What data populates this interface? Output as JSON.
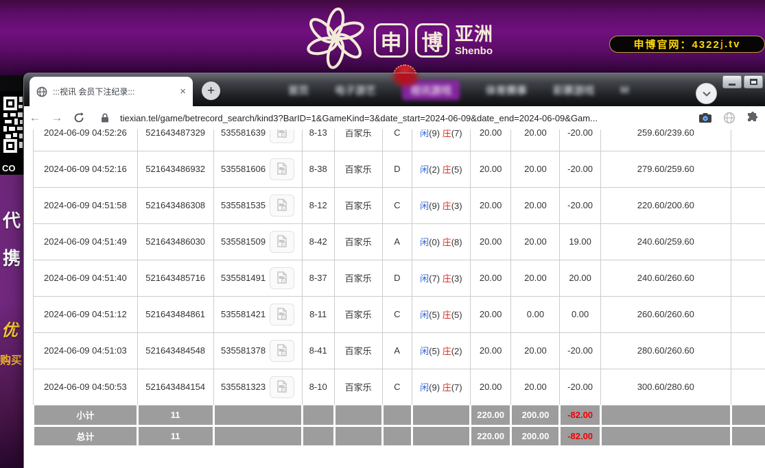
{
  "header": {
    "logo_char1": "申",
    "logo_char2": "博",
    "logo_region": "亚洲",
    "logo_sub": "Shenbo",
    "official_label": "申博官网：4322",
    "official_j": "j",
    "official_tv": ".tv",
    "accent_gold": "#ffd60a",
    "accent_purple": "#70107f"
  },
  "background_page": {
    "nav_items": [
      "首页",
      "电子游艺",
      "视讯游戏",
      "体育赛事",
      "彩票游戏",
      "M"
    ],
    "active_nav": "视讯游戏",
    "left_strip": {
      "co": "CO",
      "char1": "代",
      "char2": "携",
      "gold1": "优",
      "gold2": "购买"
    }
  },
  "browser": {
    "tab_title": ":::视讯 会员下注纪录:::",
    "tab_close": "×",
    "new_tab": "+",
    "back": "←",
    "forward": "→",
    "url": "tiexian.tel/game/betrecord_search/kind3?BarID=1&GameKind=3&date_start=2024-06-09&date_end=2024-06-09&Gam..."
  },
  "table": {
    "rows": [
      {
        "time": "2024-06-09 04:52:26",
        "bet_id": "521643487329",
        "round_id": "535581639",
        "table_no": "8-13",
        "game": "百家乐",
        "letter": "C",
        "p_label": "闲",
        "p_num": "(9)",
        "b_label": "庄",
        "b_num": "(7)",
        "bet": "20.00",
        "valid": "20.00",
        "winloss": "-20.00",
        "balance": "259.60/239.60"
      },
      {
        "time": "2024-06-09 04:52:16",
        "bet_id": "521643486932",
        "round_id": "535581606",
        "table_no": "8-38",
        "game": "百家乐",
        "letter": "D",
        "p_label": "闲",
        "p_num": "(2)",
        "b_label": "庄",
        "b_num": "(5)",
        "bet": "20.00",
        "valid": "20.00",
        "winloss": "-20.00",
        "balance": "279.60/259.60"
      },
      {
        "time": "2024-06-09 04:51:58",
        "bet_id": "521643486308",
        "round_id": "535581535",
        "table_no": "8-12",
        "game": "百家乐",
        "letter": "C",
        "p_label": "闲",
        "p_num": "(9)",
        "b_label": "庄",
        "b_num": "(3)",
        "bet": "20.00",
        "valid": "20.00",
        "winloss": "-20.00",
        "balance": "220.60/200.60"
      },
      {
        "time": "2024-06-09 04:51:49",
        "bet_id": "521643486030",
        "round_id": "535581509",
        "table_no": "8-42",
        "game": "百家乐",
        "letter": "A",
        "p_label": "闲",
        "p_num": "(0)",
        "b_label": "庄",
        "b_num": "(8)",
        "bet": "20.00",
        "valid": "20.00",
        "winloss": "19.00",
        "balance": "240.60/259.60"
      },
      {
        "time": "2024-06-09 04:51:40",
        "bet_id": "521643485716",
        "round_id": "535581491",
        "table_no": "8-37",
        "game": "百家乐",
        "letter": "D",
        "p_label": "闲",
        "p_num": "(7)",
        "b_label": "庄",
        "b_num": "(3)",
        "bet": "20.00",
        "valid": "20.00",
        "winloss": "20.00",
        "balance": "240.60/260.60"
      },
      {
        "time": "2024-06-09 04:51:12",
        "bet_id": "521643484861",
        "round_id": "535581421",
        "table_no": "8-11",
        "game": "百家乐",
        "letter": "C",
        "p_label": "闲",
        "p_num": "(5)",
        "b_label": "庄",
        "b_num": "(5)",
        "bet": "20.00",
        "valid": "0.00",
        "winloss": "0.00",
        "balance": "260.60/260.60"
      },
      {
        "time": "2024-06-09 04:51:03",
        "bet_id": "521643484548",
        "round_id": "535581378",
        "table_no": "8-41",
        "game": "百家乐",
        "letter": "A",
        "p_label": "闲",
        "p_num": "(5)",
        "b_label": "庄",
        "b_num": "(2)",
        "bet": "20.00",
        "valid": "20.00",
        "winloss": "-20.00",
        "balance": "280.60/260.60"
      },
      {
        "time": "2024-06-09 04:50:53",
        "bet_id": "521643484154",
        "round_id": "535581323",
        "table_no": "8-10",
        "game": "百家乐",
        "letter": "C",
        "p_label": "闲",
        "p_num": "(9)",
        "b_label": "庄",
        "b_num": "(7)",
        "bet": "20.00",
        "valid": "20.00",
        "winloss": "-20.00",
        "balance": "300.60/280.60"
      }
    ],
    "subtotal": {
      "label": "小计",
      "count": "11",
      "bet": "220.00",
      "valid": "200.00",
      "winloss": "-82.00"
    },
    "total": {
      "label": "总计",
      "count": "11",
      "bet": "220.00",
      "valid": "200.00",
      "winloss": "-82.00"
    }
  }
}
